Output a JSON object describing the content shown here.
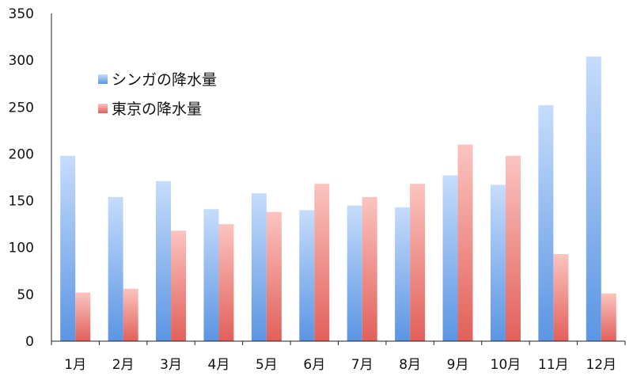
{
  "chart_data": {
    "type": "bar",
    "categories": [
      "1月",
      "2月",
      "3月",
      "4月",
      "5月",
      "6月",
      "7月",
      "8月",
      "9月",
      "10月",
      "11月",
      "12月"
    ],
    "series": [
      {
        "name": "シンガの降水量",
        "color": "#5b95e3",
        "color_light": "#c6dcfb",
        "values": [
          198,
          154,
          171,
          141,
          158,
          140,
          145,
          143,
          177,
          167,
          252,
          304
        ]
      },
      {
        "name": "東京の降水量",
        "color": "#e2605a",
        "color_light": "#fbc4c0",
        "values": [
          52,
          56,
          118,
          125,
          138,
          168,
          154,
          168,
          210,
          198,
          93,
          51
        ]
      }
    ],
    "y_ticks": [
      "0",
      "50",
      "100",
      "150",
      "200",
      "250",
      "300",
      "350"
    ],
    "ylim": [
      0,
      350
    ],
    "grid": false,
    "legend_position": "top-left"
  }
}
